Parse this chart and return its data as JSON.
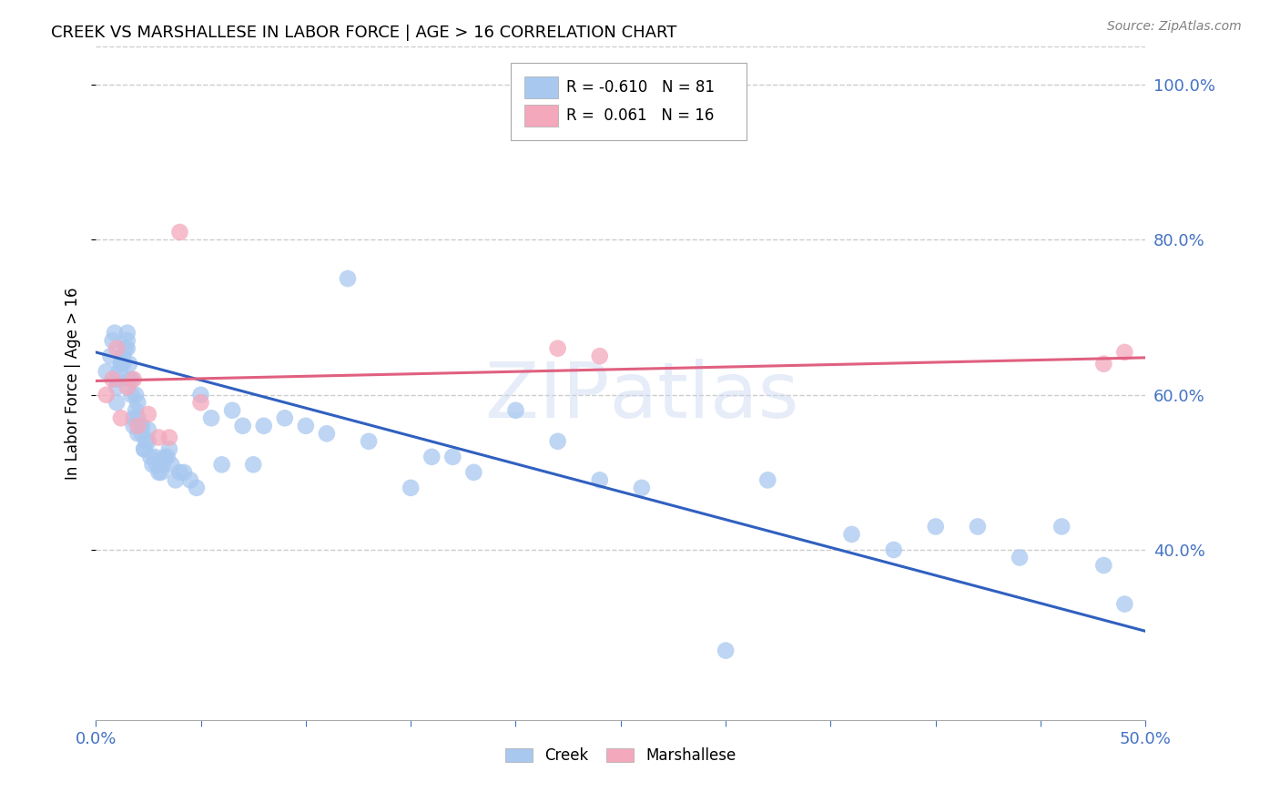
{
  "title": "CREEK VS MARSHALLESE IN LABOR FORCE | AGE > 16 CORRELATION CHART",
  "source_text": "Source: ZipAtlas.com",
  "ylabel": "In Labor Force | Age > 16",
  "xlim": [
    0.0,
    0.5
  ],
  "ylim": [
    0.18,
    1.05
  ],
  "yticks": [
    0.4,
    0.6,
    0.8,
    1.0
  ],
  "xticks_major": [
    0.0,
    0.05,
    0.1,
    0.15,
    0.2,
    0.25,
    0.3,
    0.35,
    0.4,
    0.45,
    0.5
  ],
  "xticks_labeled": [
    0.0,
    0.5
  ],
  "creek_R": -0.61,
  "creek_N": 81,
  "marsh_R": 0.061,
  "marsh_N": 16,
  "creek_color": "#A8C8F0",
  "marsh_color": "#F4A8BC",
  "creek_line_color": "#3060C0",
  "marsh_line_color": "#E06080",
  "creek_line_y0": 0.655,
  "creek_line_y1": 0.295,
  "marsh_line_y0": 0.618,
  "marsh_line_y1": 0.648,
  "creek_x": [
    0.005,
    0.007,
    0.008,
    0.009,
    0.01,
    0.01,
    0.01,
    0.011,
    0.012,
    0.012,
    0.013,
    0.013,
    0.014,
    0.015,
    0.015,
    0.015,
    0.016,
    0.016,
    0.017,
    0.017,
    0.018,
    0.018,
    0.019,
    0.019,
    0.02,
    0.02,
    0.02,
    0.021,
    0.022,
    0.022,
    0.023,
    0.023,
    0.024,
    0.025,
    0.025,
    0.026,
    0.027,
    0.028,
    0.029,
    0.03,
    0.031,
    0.032,
    0.033,
    0.034,
    0.035,
    0.036,
    0.038,
    0.04,
    0.042,
    0.045,
    0.048,
    0.05,
    0.055,
    0.06,
    0.065,
    0.07,
    0.075,
    0.08,
    0.09,
    0.1,
    0.11,
    0.12,
    0.13,
    0.15,
    0.16,
    0.17,
    0.18,
    0.2,
    0.22,
    0.24,
    0.26,
    0.3,
    0.32,
    0.36,
    0.38,
    0.4,
    0.42,
    0.44,
    0.46,
    0.48,
    0.49
  ],
  "creek_y": [
    0.63,
    0.65,
    0.67,
    0.68,
    0.59,
    0.61,
    0.62,
    0.63,
    0.64,
    0.64,
    0.64,
    0.65,
    0.66,
    0.66,
    0.67,
    0.68,
    0.62,
    0.64,
    0.6,
    0.62,
    0.56,
    0.57,
    0.58,
    0.6,
    0.55,
    0.57,
    0.59,
    0.56,
    0.55,
    0.56,
    0.53,
    0.53,
    0.54,
    0.54,
    0.555,
    0.52,
    0.51,
    0.52,
    0.51,
    0.5,
    0.5,
    0.51,
    0.52,
    0.52,
    0.53,
    0.51,
    0.49,
    0.5,
    0.5,
    0.49,
    0.48,
    0.6,
    0.57,
    0.51,
    0.58,
    0.56,
    0.51,
    0.56,
    0.57,
    0.56,
    0.55,
    0.75,
    0.54,
    0.48,
    0.52,
    0.52,
    0.5,
    0.58,
    0.54,
    0.49,
    0.48,
    0.27,
    0.49,
    0.42,
    0.4,
    0.43,
    0.43,
    0.39,
    0.43,
    0.38,
    0.33
  ],
  "marsh_x": [
    0.005,
    0.008,
    0.01,
    0.012,
    0.015,
    0.018,
    0.02,
    0.025,
    0.03,
    0.035,
    0.04,
    0.05,
    0.22,
    0.24,
    0.48,
    0.49
  ],
  "marsh_y": [
    0.6,
    0.62,
    0.66,
    0.57,
    0.61,
    0.62,
    0.56,
    0.575,
    0.545,
    0.545,
    0.81,
    0.59,
    0.66,
    0.65,
    0.64,
    0.655
  ]
}
